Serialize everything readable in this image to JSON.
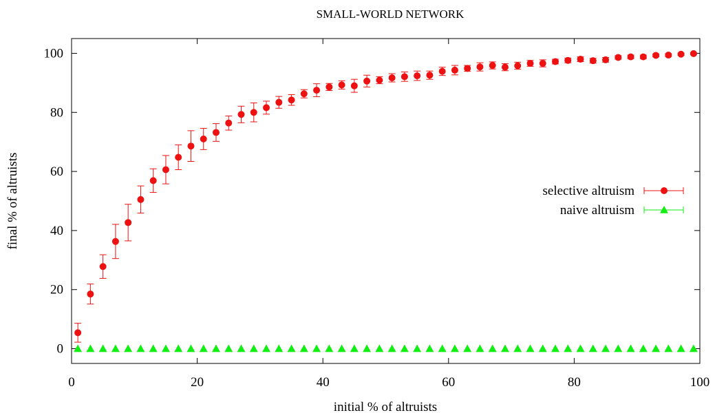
{
  "chart_data": {
    "type": "scatter",
    "title": "SMALL-WORLD NETWORK",
    "xlabel": "initial % of altruists",
    "ylabel": "final % of altruists",
    "xlim": [
      0,
      100
    ],
    "ylim": [
      -5,
      105
    ],
    "xticks": [
      "0",
      "20",
      "40",
      "60",
      "80",
      "100"
    ],
    "yticks": [
      "0",
      "20",
      "40",
      "60",
      "80",
      "100"
    ],
    "xtick_values": [
      0,
      20,
      40,
      60,
      80,
      100
    ],
    "ytick_values": [
      0,
      20,
      40,
      60,
      80,
      100
    ],
    "grid": false,
    "legend_position": "right",
    "series": [
      {
        "name": "selective altruism",
        "color": "#ee1111",
        "marker": "circle",
        "x": [
          1,
          3,
          5,
          7,
          9,
          11,
          13,
          15,
          17,
          19,
          21,
          23,
          25,
          27,
          29,
          31,
          33,
          35,
          37,
          39,
          41,
          43,
          45,
          47,
          49,
          51,
          53,
          55,
          57,
          59,
          61,
          63,
          65,
          67,
          69,
          71,
          73,
          75,
          77,
          79,
          81,
          83,
          85,
          87,
          89,
          91,
          93,
          95,
          97,
          99
        ],
        "y": [
          5.4,
          18.5,
          27.8,
          36.3,
          42.7,
          50.5,
          56.9,
          60.6,
          64.8,
          68.6,
          71.0,
          73.2,
          76.4,
          79.3,
          80.0,
          81.6,
          83.4,
          84.2,
          86.3,
          87.5,
          88.6,
          89.3,
          89.0,
          90.6,
          90.9,
          91.7,
          92.1,
          92.4,
          92.6,
          93.9,
          94.3,
          94.9,
          95.4,
          95.9,
          95.3,
          95.8,
          96.6,
          96.6,
          97.2,
          97.6,
          98.0,
          97.5,
          97.8,
          98.6,
          98.8,
          98.8,
          99.3,
          99.4,
          99.7,
          99.9
        ],
        "err": [
          3.2,
          3.4,
          4.0,
          5.8,
          6.2,
          4.6,
          4.0,
          4.8,
          4.2,
          5.2,
          3.6,
          3.0,
          2.4,
          2.8,
          3.2,
          2.2,
          2.0,
          1.8,
          1.4,
          2.2,
          1.2,
          1.4,
          2.2,
          2.0,
          1.2,
          1.4,
          1.6,
          1.6,
          1.4,
          1.4,
          1.6,
          1.0,
          1.4,
          1.2,
          1.2,
          1.2,
          1.0,
          1.2,
          0.8,
          0.8,
          0.8,
          0.8,
          0.8,
          0.6,
          0.6,
          0.6,
          0.5,
          0.5,
          0.4,
          0.3
        ]
      },
      {
        "name": "naive altruism",
        "color": "#11ee11",
        "marker": "triangle",
        "x": [
          1,
          3,
          5,
          7,
          9,
          11,
          13,
          15,
          17,
          19,
          21,
          23,
          25,
          27,
          29,
          31,
          33,
          35,
          37,
          39,
          41,
          43,
          45,
          47,
          49,
          51,
          53,
          55,
          57,
          59,
          61,
          63,
          65,
          67,
          69,
          71,
          73,
          75,
          77,
          79,
          81,
          83,
          85,
          87,
          89,
          91,
          93,
          95,
          97,
          99
        ],
        "y": [
          0,
          0,
          0,
          0,
          0,
          0,
          0,
          0,
          0,
          0,
          0,
          0,
          0,
          0,
          0,
          0,
          0,
          0,
          0,
          0,
          0,
          0,
          0,
          0,
          0,
          0,
          0,
          0,
          0,
          0,
          0,
          0,
          0,
          0,
          0,
          0,
          0,
          0,
          0,
          0,
          0,
          0,
          0,
          0,
          0,
          0,
          0,
          0,
          0,
          0
        ],
        "err": [
          0,
          0,
          0,
          0,
          0,
          0,
          0,
          0,
          0,
          0,
          0,
          0,
          0,
          0,
          0,
          0,
          0,
          0,
          0,
          0,
          0,
          0,
          0,
          0,
          0,
          0,
          0,
          0,
          0,
          0,
          0,
          0,
          0,
          0,
          0,
          0,
          0,
          0,
          0,
          0,
          0,
          0,
          0,
          0,
          0,
          0,
          0,
          0,
          0,
          0
        ]
      }
    ]
  }
}
